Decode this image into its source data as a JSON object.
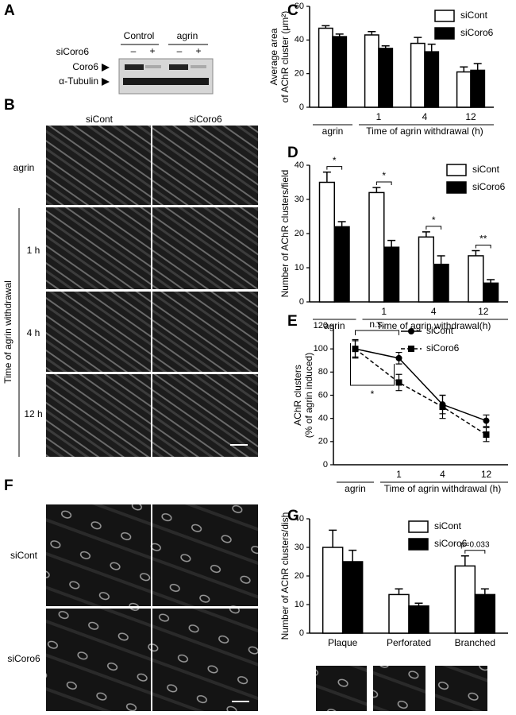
{
  "panel_labels": [
    "A",
    "B",
    "C",
    "D",
    "E",
    "F",
    "G"
  ],
  "blot": {
    "conditions": [
      "Control",
      "agrin"
    ],
    "treatment_label": "siCoro6",
    "treatment_marks": [
      "–",
      "+",
      "–",
      "+"
    ],
    "bands": [
      "Coro6",
      "α-Tubulin"
    ]
  },
  "micrographs_B": {
    "columns": [
      "siCont",
      "siCoro6"
    ],
    "rows": [
      "agrin",
      "1 h",
      "4 h",
      "12 h"
    ],
    "group_label": "Time of agrin withdrawal"
  },
  "micrographs_F": {
    "rows": [
      "siCont",
      "siCoro6"
    ]
  },
  "chart_data": [
    {
      "type": "bar",
      "ylabel": [
        "Average area",
        "of AChR cluster (μm²)"
      ],
      "categories": [
        "agrin",
        "1",
        "4",
        "12"
      ],
      "xlabel": "Time of agrin withdrawal (h)",
      "ylim": [
        0,
        60
      ],
      "yticks": [
        0,
        20,
        40,
        60
      ],
      "series": [
        {
          "name": "siCont",
          "color": "#ffffff",
          "values": [
            47,
            43,
            38,
            21
          ],
          "errors": [
            1.5,
            2,
            3.5,
            3
          ]
        },
        {
          "name": "siCoro6",
          "color": "#000000",
          "values": [
            42,
            35,
            33,
            22
          ],
          "errors": [
            1.5,
            1.5,
            4.5,
            4
          ]
        }
      ]
    },
    {
      "type": "bar",
      "ylabel": "Number of AChR clusters/field",
      "categories": [
        "agrin",
        "1",
        "4",
        "12"
      ],
      "xlabel": "Time of agrin withdrawal(h)",
      "ylim": [
        0,
        40
      ],
      "yticks": [
        0,
        10,
        20,
        30,
        40
      ],
      "significance": [
        "*",
        "*",
        "*",
        "**"
      ],
      "series": [
        {
          "name": "siCont",
          "color": "#ffffff",
          "values": [
            35,
            32,
            19,
            13.5
          ],
          "errors": [
            3,
            1.5,
            1.5,
            1.5
          ]
        },
        {
          "name": "siCoro6",
          "color": "#000000",
          "values": [
            22,
            16,
            11,
            5.5
          ],
          "errors": [
            1.5,
            2,
            2.5,
            1
          ]
        }
      ]
    },
    {
      "type": "line",
      "ylabel": [
        "AChR clusters",
        "(% of agrin induced)"
      ],
      "categories": [
        "agrin",
        "1",
        "4",
        "12"
      ],
      "xlabel": "Time of agrin withdrawal (h)",
      "ylim": [
        0,
        120
      ],
      "yticks": [
        0,
        20,
        40,
        60,
        80,
        100,
        120
      ],
      "annotations": [
        "n.s.",
        "*"
      ],
      "series": [
        {
          "name": "siCont",
          "color": "#000000",
          "marker": "circle",
          "dashed": false,
          "values": [
            100,
            92,
            52,
            38
          ],
          "errors": [
            7,
            5,
            8,
            5
          ]
        },
        {
          "name": "siCoro6",
          "color": "#000000",
          "marker": "square",
          "dashed": true,
          "values": [
            100,
            71,
            50,
            26
          ],
          "errors": [
            8,
            7,
            10,
            6
          ]
        }
      ]
    },
    {
      "type": "bar",
      "ylabel": "Number of AChR clusters/dish",
      "categories": [
        "Plaque",
        "Perforated",
        "Branched"
      ],
      "ylim": [
        0,
        40
      ],
      "yticks": [
        0,
        10,
        20,
        30,
        40
      ],
      "significance": [
        null,
        null,
        "p=0.033"
      ],
      "series": [
        {
          "name": "siCont",
          "color": "#ffffff",
          "values": [
            30,
            13.5,
            23.5
          ],
          "errors": [
            6,
            2,
            3.5
          ]
        },
        {
          "name": "siCoro6",
          "color": "#000000",
          "values": [
            25,
            9.5,
            13.5
          ],
          "errors": [
            4,
            1,
            2
          ]
        }
      ]
    }
  ]
}
